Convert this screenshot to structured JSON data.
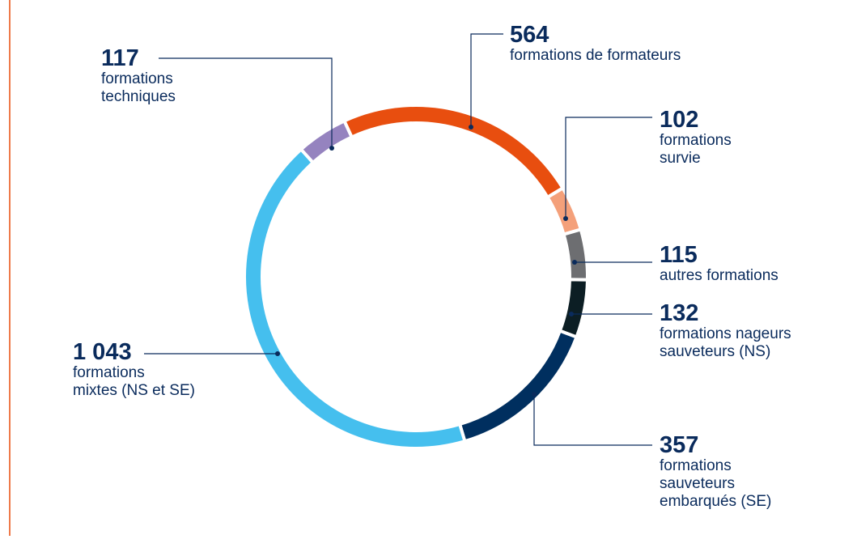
{
  "chart_data": {
    "type": "donut",
    "categories": [
      "formations de formateurs",
      "formations\nsurvie",
      "autres formations",
      "formations nageurs\nsauveteurs (NS)",
      "formations\nsauveteurs\nembarqués (SE)",
      "formations\nmixtes (NS et SE)",
      "formations\ntechniques"
    ],
    "values": [
      564,
      102,
      115,
      132,
      357,
      1043,
      117
    ],
    "value_labels": [
      "564",
      "102",
      "115",
      "132",
      "357",
      "1 043",
      "117"
    ],
    "colors": [
      "#e84e0f",
      "#f4a07a",
      "#6d6e71",
      "#0c1e24",
      "#002f5f",
      "#45bfee",
      "#9583bf"
    ]
  }
}
